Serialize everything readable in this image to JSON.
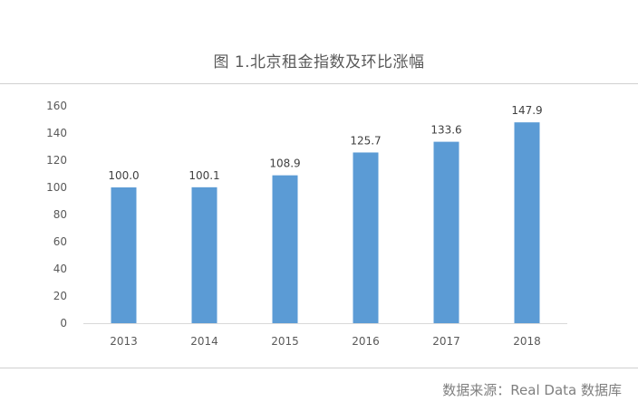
{
  "header": {
    "title": "图 1.北京租金指数及环比涨幅"
  },
  "footer": {
    "source": "数据来源：Real Data 数据库"
  },
  "chart_data": {
    "type": "bar",
    "categories": [
      "2013",
      "2014",
      "2015",
      "2016",
      "2017",
      "2018"
    ],
    "values": [
      100.0,
      100.1,
      108.9,
      125.7,
      133.6,
      147.9
    ],
    "value_labels": [
      "100.0",
      "100.1",
      "108.9",
      "125.7",
      "133.6",
      "147.9"
    ],
    "title": "图 1.北京租金指数及环比涨幅",
    "xlabel": "",
    "ylabel": "",
    "ylim": [
      0,
      160
    ],
    "yticks": [
      0,
      20,
      40,
      60,
      80,
      100,
      120,
      140,
      160
    ],
    "grid": false,
    "legend": "none",
    "bar_color": "#5b9bd5"
  }
}
